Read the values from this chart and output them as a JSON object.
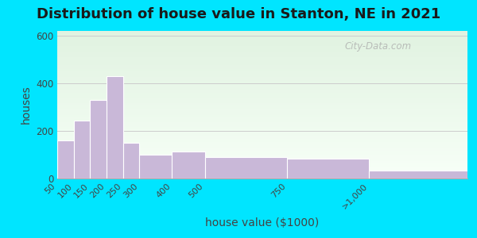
{
  "title": "Distribution of house value in Stanton, NE in 2021",
  "xlabel": "house value ($1000)",
  "ylabel": "houses",
  "bin_edges": [
    50,
    100,
    150,
    200,
    250,
    300,
    400,
    500,
    750,
    1000,
    1300
  ],
  "bin_labels": [
    "50",
    "100",
    "150",
    "200",
    "250",
    "300",
    "400",
    "500",
    "750",
    ">1,000"
  ],
  "bar_heights": [
    160,
    245,
    330,
    430,
    150,
    100,
    115,
    90,
    85,
    35
  ],
  "bar_color": "#c9b8d8",
  "bar_edge_color": "#ffffff",
  "ylim": [
    0,
    620
  ],
  "yticks": [
    0,
    200,
    400,
    600
  ],
  "outer_bg": "#00e5ff",
  "title_fontsize": 13,
  "axis_label_fontsize": 10,
  "watermark_text": "City-Data.com"
}
